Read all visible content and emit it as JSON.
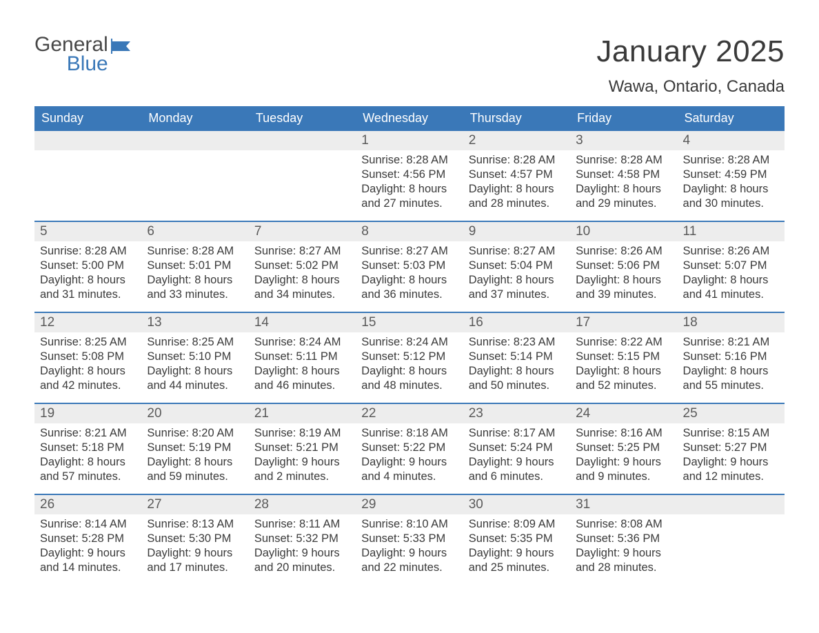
{
  "brand": {
    "word1": "General",
    "word2": "Blue"
  },
  "title": "January 2025",
  "location": "Wawa, Ontario, Canada",
  "colors": {
    "header_bg": "#3a78b8",
    "header_text": "#ffffff",
    "daynum_bg": "#ededed",
    "week_divider": "#3a78b8",
    "text": "#3a3a3a",
    "background": "#ffffff"
  },
  "typography": {
    "title_fontsize": 44,
    "location_fontsize": 24,
    "dow_fontsize": 18,
    "daynum_fontsize": 19,
    "body_fontsize": 16.5
  },
  "days_of_week": [
    "Sunday",
    "Monday",
    "Tuesday",
    "Wednesday",
    "Thursday",
    "Friday",
    "Saturday"
  ],
  "weeks": [
    [
      {
        "n": "",
        "sr": "",
        "ss": "",
        "dl1": "",
        "dl2": ""
      },
      {
        "n": "",
        "sr": "",
        "ss": "",
        "dl1": "",
        "dl2": ""
      },
      {
        "n": "",
        "sr": "",
        "ss": "",
        "dl1": "",
        "dl2": ""
      },
      {
        "n": "1",
        "sr": "Sunrise: 8:28 AM",
        "ss": "Sunset: 4:56 PM",
        "dl1": "Daylight: 8 hours",
        "dl2": "and 27 minutes."
      },
      {
        "n": "2",
        "sr": "Sunrise: 8:28 AM",
        "ss": "Sunset: 4:57 PM",
        "dl1": "Daylight: 8 hours",
        "dl2": "and 28 minutes."
      },
      {
        "n": "3",
        "sr": "Sunrise: 8:28 AM",
        "ss": "Sunset: 4:58 PM",
        "dl1": "Daylight: 8 hours",
        "dl2": "and 29 minutes."
      },
      {
        "n": "4",
        "sr": "Sunrise: 8:28 AM",
        "ss": "Sunset: 4:59 PM",
        "dl1": "Daylight: 8 hours",
        "dl2": "and 30 minutes."
      }
    ],
    [
      {
        "n": "5",
        "sr": "Sunrise: 8:28 AM",
        "ss": "Sunset: 5:00 PM",
        "dl1": "Daylight: 8 hours",
        "dl2": "and 31 minutes."
      },
      {
        "n": "6",
        "sr": "Sunrise: 8:28 AM",
        "ss": "Sunset: 5:01 PM",
        "dl1": "Daylight: 8 hours",
        "dl2": "and 33 minutes."
      },
      {
        "n": "7",
        "sr": "Sunrise: 8:27 AM",
        "ss": "Sunset: 5:02 PM",
        "dl1": "Daylight: 8 hours",
        "dl2": "and 34 minutes."
      },
      {
        "n": "8",
        "sr": "Sunrise: 8:27 AM",
        "ss": "Sunset: 5:03 PM",
        "dl1": "Daylight: 8 hours",
        "dl2": "and 36 minutes."
      },
      {
        "n": "9",
        "sr": "Sunrise: 8:27 AM",
        "ss": "Sunset: 5:04 PM",
        "dl1": "Daylight: 8 hours",
        "dl2": "and 37 minutes."
      },
      {
        "n": "10",
        "sr": "Sunrise: 8:26 AM",
        "ss": "Sunset: 5:06 PM",
        "dl1": "Daylight: 8 hours",
        "dl2": "and 39 minutes."
      },
      {
        "n": "11",
        "sr": "Sunrise: 8:26 AM",
        "ss": "Sunset: 5:07 PM",
        "dl1": "Daylight: 8 hours",
        "dl2": "and 41 minutes."
      }
    ],
    [
      {
        "n": "12",
        "sr": "Sunrise: 8:25 AM",
        "ss": "Sunset: 5:08 PM",
        "dl1": "Daylight: 8 hours",
        "dl2": "and 42 minutes."
      },
      {
        "n": "13",
        "sr": "Sunrise: 8:25 AM",
        "ss": "Sunset: 5:10 PM",
        "dl1": "Daylight: 8 hours",
        "dl2": "and 44 minutes."
      },
      {
        "n": "14",
        "sr": "Sunrise: 8:24 AM",
        "ss": "Sunset: 5:11 PM",
        "dl1": "Daylight: 8 hours",
        "dl2": "and 46 minutes."
      },
      {
        "n": "15",
        "sr": "Sunrise: 8:24 AM",
        "ss": "Sunset: 5:12 PM",
        "dl1": "Daylight: 8 hours",
        "dl2": "and 48 minutes."
      },
      {
        "n": "16",
        "sr": "Sunrise: 8:23 AM",
        "ss": "Sunset: 5:14 PM",
        "dl1": "Daylight: 8 hours",
        "dl2": "and 50 minutes."
      },
      {
        "n": "17",
        "sr": "Sunrise: 8:22 AM",
        "ss": "Sunset: 5:15 PM",
        "dl1": "Daylight: 8 hours",
        "dl2": "and 52 minutes."
      },
      {
        "n": "18",
        "sr": "Sunrise: 8:21 AM",
        "ss": "Sunset: 5:16 PM",
        "dl1": "Daylight: 8 hours",
        "dl2": "and 55 minutes."
      }
    ],
    [
      {
        "n": "19",
        "sr": "Sunrise: 8:21 AM",
        "ss": "Sunset: 5:18 PM",
        "dl1": "Daylight: 8 hours",
        "dl2": "and 57 minutes."
      },
      {
        "n": "20",
        "sr": "Sunrise: 8:20 AM",
        "ss": "Sunset: 5:19 PM",
        "dl1": "Daylight: 8 hours",
        "dl2": "and 59 minutes."
      },
      {
        "n": "21",
        "sr": "Sunrise: 8:19 AM",
        "ss": "Sunset: 5:21 PM",
        "dl1": "Daylight: 9 hours",
        "dl2": "and 2 minutes."
      },
      {
        "n": "22",
        "sr": "Sunrise: 8:18 AM",
        "ss": "Sunset: 5:22 PM",
        "dl1": "Daylight: 9 hours",
        "dl2": "and 4 minutes."
      },
      {
        "n": "23",
        "sr": "Sunrise: 8:17 AM",
        "ss": "Sunset: 5:24 PM",
        "dl1": "Daylight: 9 hours",
        "dl2": "and 6 minutes."
      },
      {
        "n": "24",
        "sr": "Sunrise: 8:16 AM",
        "ss": "Sunset: 5:25 PM",
        "dl1": "Daylight: 9 hours",
        "dl2": "and 9 minutes."
      },
      {
        "n": "25",
        "sr": "Sunrise: 8:15 AM",
        "ss": "Sunset: 5:27 PM",
        "dl1": "Daylight: 9 hours",
        "dl2": "and 12 minutes."
      }
    ],
    [
      {
        "n": "26",
        "sr": "Sunrise: 8:14 AM",
        "ss": "Sunset: 5:28 PM",
        "dl1": "Daylight: 9 hours",
        "dl2": "and 14 minutes."
      },
      {
        "n": "27",
        "sr": "Sunrise: 8:13 AM",
        "ss": "Sunset: 5:30 PM",
        "dl1": "Daylight: 9 hours",
        "dl2": "and 17 minutes."
      },
      {
        "n": "28",
        "sr": "Sunrise: 8:11 AM",
        "ss": "Sunset: 5:32 PM",
        "dl1": "Daylight: 9 hours",
        "dl2": "and 20 minutes."
      },
      {
        "n": "29",
        "sr": "Sunrise: 8:10 AM",
        "ss": "Sunset: 5:33 PM",
        "dl1": "Daylight: 9 hours",
        "dl2": "and 22 minutes."
      },
      {
        "n": "30",
        "sr": "Sunrise: 8:09 AM",
        "ss": "Sunset: 5:35 PM",
        "dl1": "Daylight: 9 hours",
        "dl2": "and 25 minutes."
      },
      {
        "n": "31",
        "sr": "Sunrise: 8:08 AM",
        "ss": "Sunset: 5:36 PM",
        "dl1": "Daylight: 9 hours",
        "dl2": "and 28 minutes."
      },
      {
        "n": "",
        "sr": "",
        "ss": "",
        "dl1": "",
        "dl2": ""
      }
    ]
  ]
}
